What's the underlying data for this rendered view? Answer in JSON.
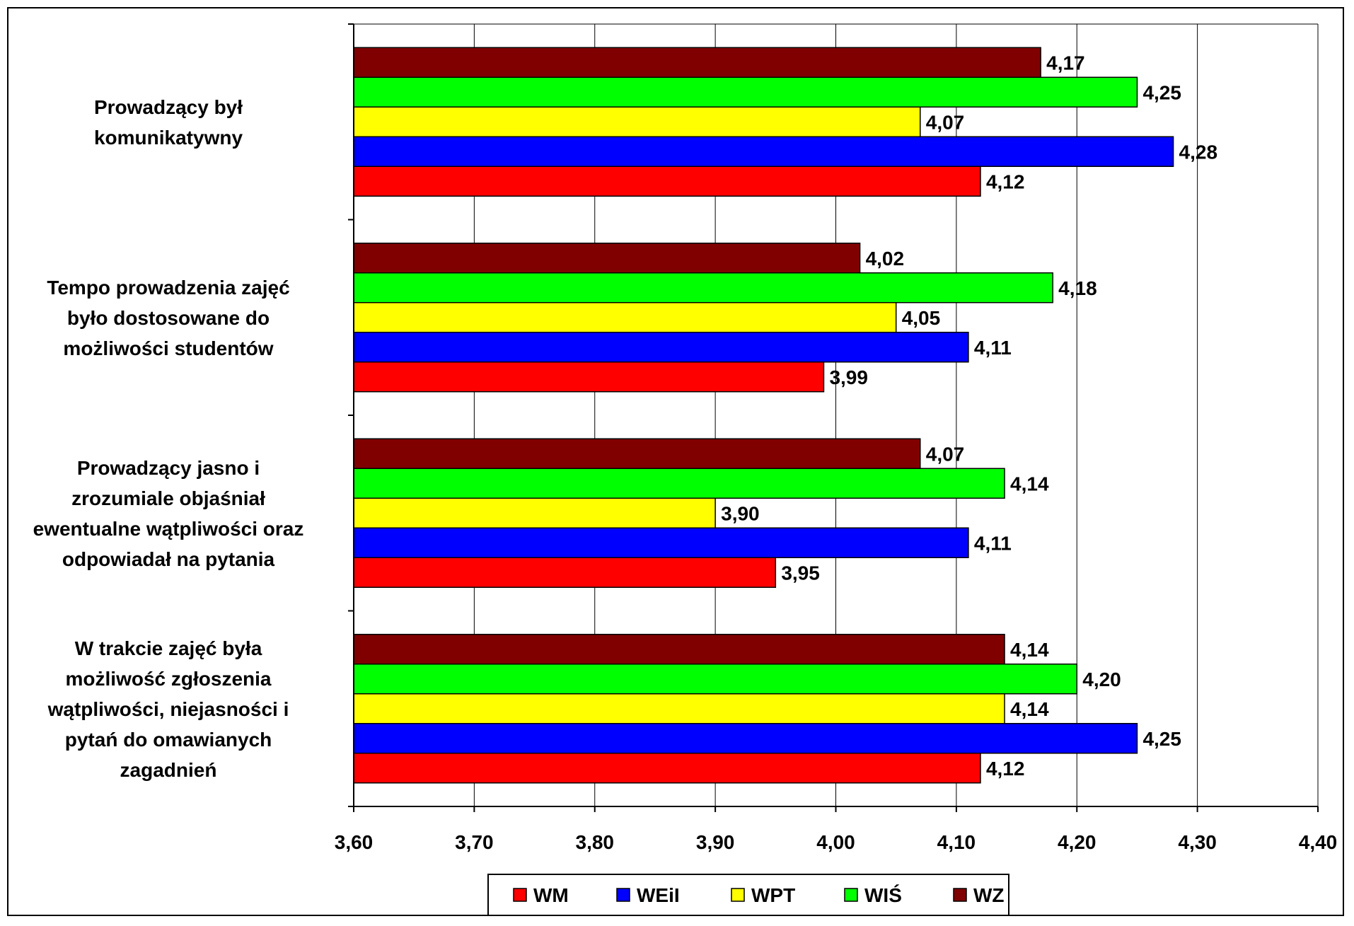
{
  "chart_data": {
    "type": "bar",
    "orientation": "horizontal",
    "categories": [
      [
        "Prowadzący był",
        "komunikatywny"
      ],
      [
        "Tempo prowadzenia zajęć",
        "było dostosowane do",
        "możliwości studentów"
      ],
      [
        "Prowadzący jasno i",
        "zrozumiale objaśniał",
        "ewentualne wątpliwości oraz",
        "odpowiadał na pytania"
      ],
      [
        "W trakcie zajęć była",
        "możliwość zgłoszenia",
        "wątpliwości, niejasności i",
        "pytań do omawianych",
        "zagadnień"
      ]
    ],
    "series": [
      {
        "name": "WM",
        "color": "#ff0000",
        "values": [
          4.12,
          3.99,
          3.95,
          4.12
        ],
        "labels": [
          "4,12",
          "3,99",
          "3,95",
          "4,12"
        ]
      },
      {
        "name": "WEiI",
        "color": "#0000ff",
        "values": [
          4.28,
          4.11,
          4.11,
          4.25
        ],
        "labels": [
          "4,28",
          "4,11",
          "4,11",
          "4,25"
        ]
      },
      {
        "name": "WPT",
        "color": "#ffff00",
        "values": [
          4.07,
          4.05,
          3.9,
          4.14
        ],
        "labels": [
          "4,07",
          "4,05",
          "3,90",
          "4,14"
        ]
      },
      {
        "name": "WIŚ",
        "color": "#00ff00",
        "values": [
          4.25,
          4.18,
          4.14,
          4.2
        ],
        "labels": [
          "4,25",
          "4,18",
          "4,14",
          "4,20"
        ]
      },
      {
        "name": "WZ",
        "color": "#800000",
        "values": [
          4.17,
          4.02,
          4.07,
          4.14
        ],
        "labels": [
          "4,17",
          "4,02",
          "4,07",
          "4,14"
        ]
      }
    ],
    "xlim": [
      3.6,
      4.4
    ],
    "xticks": [
      3.6,
      3.7,
      3.8,
      3.9,
      4.0,
      4.1,
      4.2,
      4.3,
      4.4
    ],
    "xtick_labels": [
      "3,60",
      "3,70",
      "3,80",
      "3,90",
      "4,00",
      "4,10",
      "4,20",
      "4,30",
      "4,40"
    ],
    "grid": "vertical",
    "legend_position": "bottom",
    "title": "",
    "xlabel": "",
    "ylabel": ""
  }
}
